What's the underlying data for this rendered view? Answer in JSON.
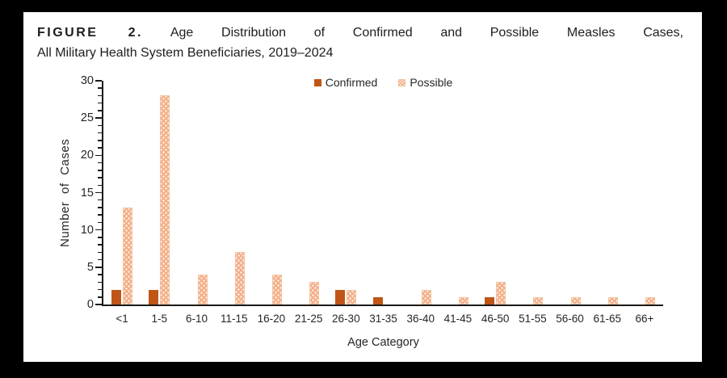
{
  "figure": {
    "label": "FIGURE 2.",
    "title_line1": "Age Distribution of Confirmed and Possible Measles Cases,",
    "title_line2": "All Military Health System Beneficiaries, 2019–2024"
  },
  "chart_data": {
    "type": "bar",
    "title": "Age Distribution of Confirmed and Possible Measles Cases, All Military Health System Beneficiaries, 2019–2024",
    "categories": [
      "<1",
      "1-5",
      "6-10",
      "11-15",
      "16-20",
      "21-25",
      "26-30",
      "31-35",
      "36-40",
      "41-45",
      "46-50",
      "51-55",
      "56-60",
      "61-65",
      "66+"
    ],
    "series": [
      {
        "name": "Confirmed",
        "color": "#C05517",
        "pattern": "solid",
        "values": [
          2,
          2,
          0,
          0,
          0,
          0,
          2,
          1,
          0,
          0,
          1,
          0,
          0,
          0,
          0
        ]
      },
      {
        "name": "Possible",
        "color": "#F3B08A",
        "pattern": "dots",
        "values": [
          13,
          28,
          4,
          7,
          4,
          3,
          2,
          0,
          2,
          1,
          3,
          1,
          1,
          1,
          1
        ]
      }
    ],
    "xlabel": "Age Category",
    "ylabel": "Number of Cases",
    "ylim": [
      0,
      30
    ],
    "yticks": [
      0,
      5,
      10,
      15,
      20,
      25,
      30
    ],
    "ytick_minor_step": 1,
    "legend_position": "top-center",
    "grid": false
  },
  "colors": {
    "frame": "#000000",
    "panel_background": "#FFFFFF",
    "axis": "#1A1A1A",
    "text": "#262626",
    "confirmed": "#C05517",
    "possible_fill": "#F3B08A",
    "possible_dot": "#FFFFFF"
  }
}
